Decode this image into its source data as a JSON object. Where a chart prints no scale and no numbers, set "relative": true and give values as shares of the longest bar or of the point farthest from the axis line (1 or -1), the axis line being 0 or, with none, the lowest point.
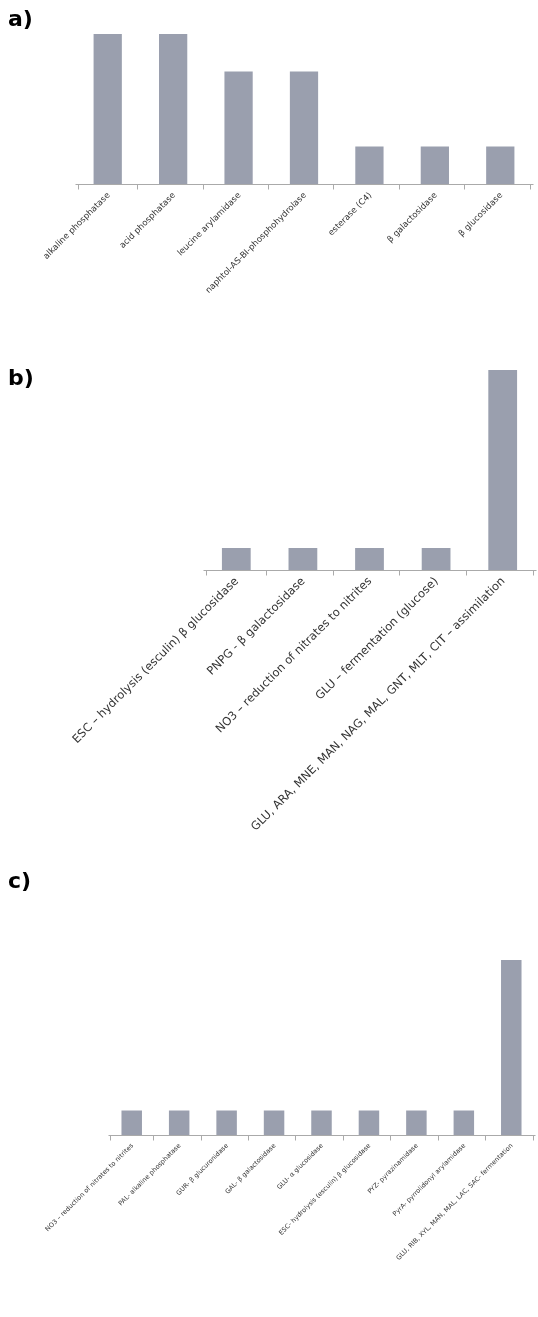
{
  "chart_data": [
    {
      "type": "bar",
      "title": "a)",
      "relative": true,
      "color": "#9a9fae",
      "categories": [
        "alkaline phosphatase",
        "acid phosphatase",
        "leucine arylamidase",
        "naphtol-AS-BI-phosphohydrolase",
        "esterase (C4)",
        "β galactosidase",
        "β glucosidase"
      ],
      "values": [
        1,
        1,
        0.75,
        0.75,
        0.25,
        0.25,
        0.25
      ]
    },
    {
      "type": "bar",
      "title": "b)",
      "relative": true,
      "color": "#9a9fae",
      "categories": [
        "ESC – hydrolysis (esculin) β glucosidase",
        "PNPG - β galactosidase",
        "NO3 – reduction of nitrates to nitrites",
        "GLU – fermentation (glucose)",
        "GLU, ARA, MNE, MAN, NAG, MAL, GNT, MLT, CIT – assimilation"
      ],
      "values": [
        0.11,
        0.11,
        0.11,
        0.11,
        1
      ]
    },
    {
      "type": "bar",
      "title": "c)",
      "relative": true,
      "color": "#9a9fae",
      "categories": [
        "NO3 – reduction of nitrates to nitrites",
        "PAL- alkaline phosphatase",
        "GUR- β glucuronidase",
        "GAL- β galactosidase",
        "GLU- α glucosidase",
        "ESC- hydrolysis (esculin) β glucosidase",
        "PYZ- pyrazinamidase",
        "PyrA- pyrrolidonyl arylamidase",
        "GLU, RIB, XYL, MAN, MAL, LAC, SAC- fermentation"
      ],
      "values": [
        0.14,
        0.14,
        0.14,
        0.14,
        0.14,
        0.14,
        0.14,
        0.14,
        1
      ]
    }
  ]
}
